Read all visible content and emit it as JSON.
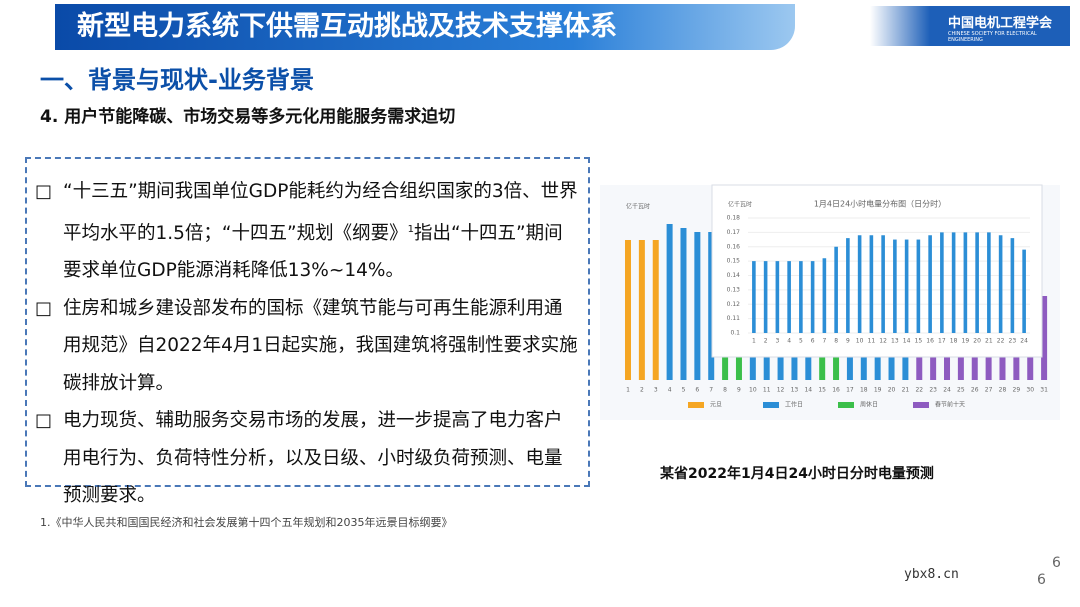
{
  "header": {
    "title": "新型电力系统下供需互动挑战及技术支撑体系",
    "logo": "中国电机工程学会",
    "logo_sub": "CHINESE SOCIETY FOR ELECTRICAL ENGINEERING"
  },
  "section": "一、背景与现状-业务背景",
  "subtitle": "4. 用户节能降碳、市场交易等多元化用能服务需求迫切",
  "bullets": [
    {
      "text": "“十三五”期间我国单位GDP能耗约为经合组织国家的3倍、世界平均水平的1.5倍；“十四五”规划《纲要》",
      "sup": "1",
      "tail": "指出“十四五”期间要求单位GDP能源消耗降低13%~14%。"
    },
    {
      "text": "住房和城乡建设部发布的国标《建筑节能与可再生能源利用通用规范》自2022年4月1日起实施，我国建筑将强制性要求实施碳排放计算。"
    },
    {
      "text": "电力现货、辅助服务交易市场的发展，进一步提高了电力客户用电行为、负荷特性分析，以及日级、小时级负荷预测、电量预测要求。"
    }
  ],
  "footnote": "1.《中华人民共和国国民经济和社会发展第十四个五年规划和2035年远景目标纲要》",
  "caption": "某省2022年1月4日24小时日分时电量预测",
  "page_number": "6",
  "page_number_2": "6",
  "watermark": "ybx8.cn",
  "chart_data": [
    {
      "type": "bar",
      "y_label": "亿千瓦时",
      "ylim": [
        0,
        4.5
      ],
      "x": [
        1,
        2,
        3,
        4,
        5,
        6,
        7,
        8,
        9,
        10,
        11,
        12,
        13,
        14,
        15,
        16,
        17,
        18,
        19,
        20,
        21,
        22,
        23,
        24,
        25,
        26,
        27,
        28,
        29,
        30,
        31
      ],
      "series": [
        {
          "name": "元旦",
          "color": "#f5a623",
          "values": [
            3.5,
            3.5,
            3.5,
            null,
            null,
            null,
            null,
            null,
            null,
            null,
            null,
            null,
            null,
            null,
            null,
            null,
            null,
            null,
            null,
            null,
            null,
            null,
            null,
            null,
            null,
            null,
            null,
            null,
            null,
            null,
            null
          ]
        },
        {
          "name": "工作日",
          "color": "#2b8ed6",
          "values": [
            null,
            null,
            null,
            3.9,
            3.8,
            3.7,
            3.7,
            null,
            null,
            3.6,
            3.6,
            3.6,
            3.6,
            3.6,
            null,
            null,
            3.6,
            3.6,
            3.6,
            3.6,
            3.6,
            null,
            null,
            null,
            null,
            null,
            null,
            null,
            null,
            null,
            null
          ]
        },
        {
          "name": "周休日",
          "color": "#3bbf4a",
          "values": [
            null,
            null,
            null,
            null,
            null,
            null,
            null,
            3.3,
            3.3,
            null,
            null,
            null,
            null,
            null,
            3.3,
            3.3,
            null,
            null,
            null,
            null,
            null,
            null,
            null,
            null,
            null,
            null,
            null,
            null,
            null,
            null,
            null
          ]
        },
        {
          "name": "春节前十天",
          "color": "#8e5bc0",
          "values": [
            null,
            null,
            null,
            null,
            null,
            null,
            null,
            null,
            null,
            null,
            null,
            null,
            null,
            null,
            null,
            null,
            null,
            null,
            null,
            null,
            null,
            3.4,
            3.3,
            3.2,
            3.1,
            3,
            2.9,
            2.8,
            2.6,
            2.4,
            2.1
          ]
        }
      ]
    },
    {
      "type": "bar",
      "title": "1月4日24小时电量分布图（日分时）",
      "y_label": "亿千瓦时",
      "color": "#2b8ed6",
      "categories": [
        "1",
        "2",
        "3",
        "4",
        "5",
        "6",
        "7",
        "8",
        "9",
        "10",
        "11",
        "12",
        "13",
        "14",
        "15",
        "16",
        "17",
        "18",
        "19",
        "20",
        "21",
        "22",
        "23",
        "24"
      ],
      "values": [
        0.15,
        0.15,
        0.15,
        0.15,
        0.15,
        0.15,
        0.152,
        0.16,
        0.166,
        0.168,
        0.168,
        0.168,
        0.165,
        0.165,
        0.165,
        0.168,
        0.17,
        0.17,
        0.17,
        0.17,
        0.17,
        0.168,
        0.166,
        0.158
      ],
      "ylim": [
        0.1,
        0.18
      ],
      "yticks": [
        0.1,
        0.11,
        0.12,
        0.13,
        0.14,
        0.15,
        0.16,
        0.17,
        0.18
      ]
    }
  ]
}
